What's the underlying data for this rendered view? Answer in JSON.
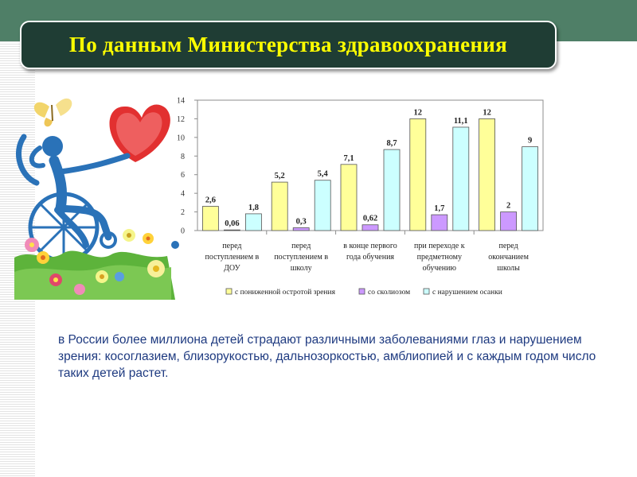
{
  "header": {
    "title": "По данным Министерства здравоохранения"
  },
  "body": {
    "paragraph": "в России более миллиона детей страдают различными заболеваниями глаз и нарушением зрения: косоглазием, близорукостью, дальнозоркостью, амблиопией и с каждым годом число таких детей растет."
  },
  "colors": {
    "header_band": "#4f7f67",
    "title_box": "#1f3d34",
    "title_text": "#ffff00",
    "body_text": "#1e3a80"
  },
  "chart_data": {
    "type": "bar",
    "categories": [
      [
        "перед",
        "поступлением в",
        "ДОУ"
      ],
      [
        "перед",
        "поступлением в",
        "школу"
      ],
      [
        "в конце первого",
        "года обучения"
      ],
      [
        "при переходе к",
        "предметному",
        "обучению"
      ],
      [
        "перед",
        "окончанием",
        "школы"
      ]
    ],
    "series": [
      {
        "name": "с пониженной остротой зрения",
        "color": "#ffff99",
        "values": [
          2.6,
          5.2,
          7.1,
          12,
          12
        ],
        "labels": [
          "2,6",
          "5,2",
          "7,1",
          "12",
          "12"
        ]
      },
      {
        "name": "со сколиозом",
        "color": "#cc99ff",
        "values": [
          0.06,
          0.3,
          0.62,
          1.7,
          2
        ],
        "labels": [
          "0,06",
          "0,3",
          "0,62",
          "1,7",
          "2"
        ]
      },
      {
        "name": "с нарушением осанки",
        "color": "#ccffff",
        "values": [
          1.8,
          5.4,
          8.7,
          11.1,
          9
        ],
        "labels": [
          "1,8",
          "5,4",
          "8,7",
          "11,1",
          "9"
        ]
      }
    ],
    "ylim": [
      0,
      14
    ],
    "yticks": [
      0,
      2,
      4,
      6,
      8,
      10,
      12,
      14
    ],
    "grid": false,
    "legend": "bottom"
  }
}
